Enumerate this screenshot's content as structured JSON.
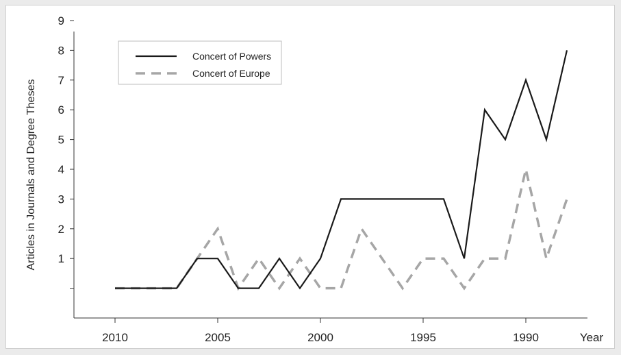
{
  "chart_data": {
    "type": "line",
    "title": "",
    "xlabel": "Year",
    "ylabel": "Articles in Journals and Degree Theses",
    "x_reversed": true,
    "xlim": [
      2012,
      1987
    ],
    "ylim": [
      -1,
      9
    ],
    "x_ticks": [
      2010,
      2005,
      2000,
      1995,
      1990
    ],
    "x_tick_labels": [
      "2010",
      "2005",
      "2000",
      "1995",
      "1990"
    ],
    "y_ticks": [
      1,
      2,
      3,
      4,
      5,
      6,
      7,
      8,
      9
    ],
    "y_tick_labels": [
      "1",
      "2",
      "3",
      "4",
      "5",
      "6",
      "7",
      "8",
      "9"
    ],
    "grid": false,
    "legend_position": "top-left",
    "x": [
      2010,
      2009,
      2008,
      2007,
      2006,
      2005,
      2004,
      2003,
      2002,
      2001,
      2000,
      1999,
      1998,
      1997,
      1996,
      1995,
      1994,
      1993,
      1992,
      1991,
      1990,
      1989,
      1988
    ],
    "series": [
      {
        "name": "Concert of Powers",
        "color": "#1a1a1a",
        "dash": "solid",
        "values": [
          0,
          0,
          0,
          0,
          1,
          1,
          0,
          0,
          1,
          0,
          1,
          3,
          3,
          3,
          3,
          3,
          3,
          1,
          6,
          5,
          7,
          5,
          8
        ]
      },
      {
        "name": "Concert of Europe",
        "color": "#a6a6a6",
        "dash": "dashed",
        "values": [
          0,
          0,
          0,
          0,
          1,
          2,
          0,
          1,
          0,
          1,
          0,
          0,
          2,
          1,
          0,
          1,
          1,
          0,
          1,
          1,
          4,
          1,
          3
        ]
      }
    ]
  }
}
